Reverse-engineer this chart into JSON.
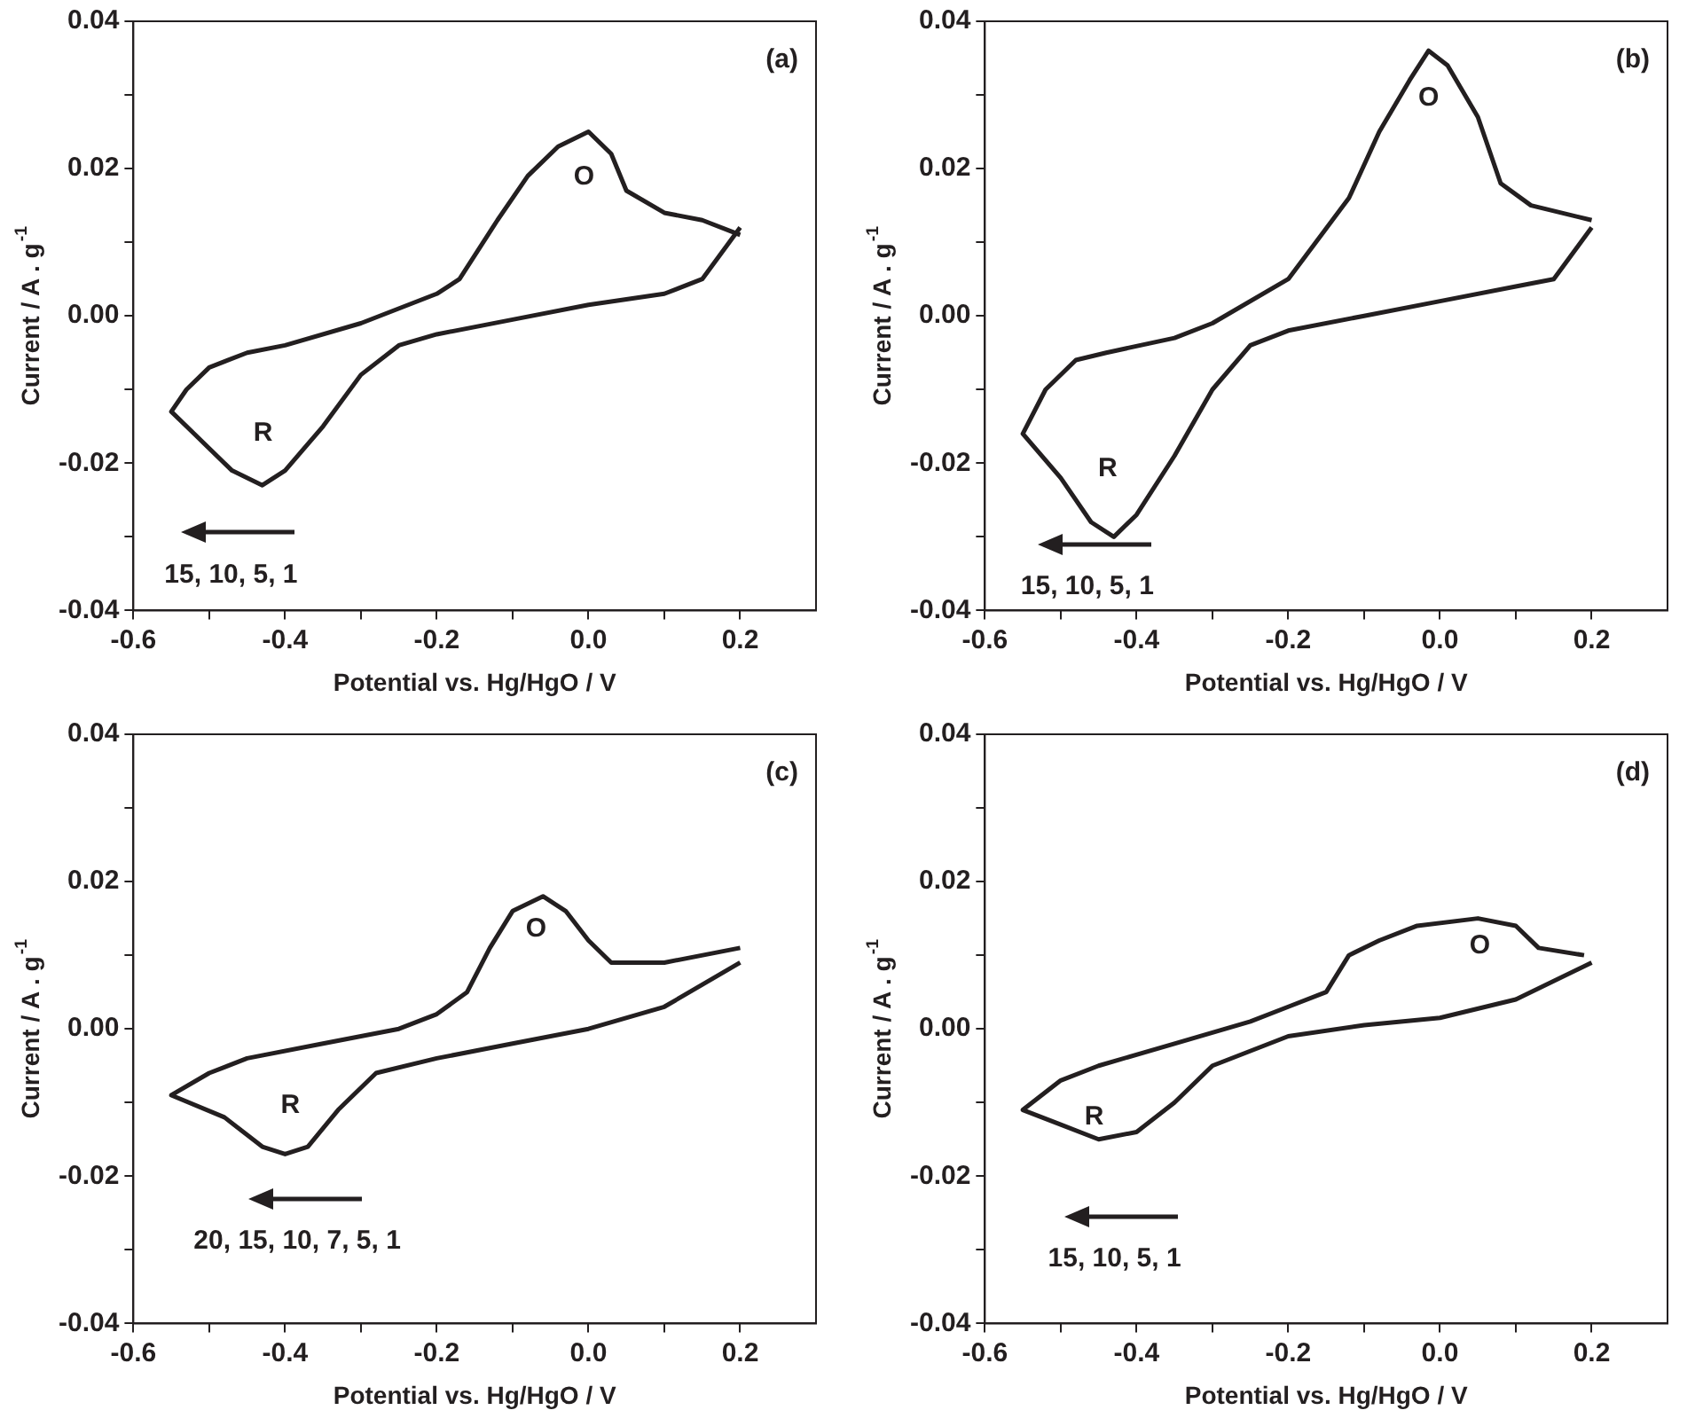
{
  "chart_data": [
    {
      "type": "line",
      "xlabel": "Potential vs. Hg/HgO / V",
      "ylabel": "Current / A . g$^{-1}$",
      "xlim": [
        -0.6,
        0.3
      ],
      "ylim": [
        -0.04,
        0.04
      ],
      "xticks": [
        -0.6,
        {
          "value": -0.5,
          "label": null
        },
        -0.4,
        {
          "value": -0.3,
          "label": null
        },
        -0.2,
        {
          "value": -0.1,
          "label": null
        },
        {
          "value": 0,
          "label": "0.0"
        },
        {
          "value": 0.1,
          "label": null
        },
        0.2
      ],
      "yticks": [
        -0.04,
        {
          "value": -0.03,
          "label": null
        },
        -0.02,
        {
          "value": -0.01,
          "label": null
        },
        {
          "value": 0,
          "label": "0.00"
        },
        {
          "value": 0.01,
          "label": null
        },
        0.02,
        {
          "value": 0.03,
          "label": null
        },
        0.04
      ],
      "marker": "none",
      "line_style": "solid",
      "grid": false,
      "legend": false,
      "series": [
        {
          "color": "#231f20",
          "x": [
            0.2,
            0.15,
            0.1,
            0.0,
            -0.1,
            -0.2,
            -0.25,
            -0.3,
            -0.35,
            -0.4,
            -0.43,
            -0.47,
            -0.52,
            -0.55,
            -0.53,
            -0.5,
            -0.45,
            -0.4,
            -0.3,
            -0.2,
            -0.17,
            -0.12,
            -0.08,
            -0.04,
            0.0,
            0.03,
            0.05,
            0.1,
            0.15,
            0.2
          ],
          "values": [
            0.012,
            0.005,
            0.003,
            0.0015,
            -0.0005,
            -0.0025,
            -0.004,
            -0.008,
            -0.015,
            -0.021,
            -0.023,
            -0.021,
            -0.016,
            -0.013,
            -0.01,
            -0.007,
            -0.005,
            -0.004,
            -0.001,
            0.003,
            0.005,
            0.013,
            0.019,
            0.023,
            0.025,
            0.022,
            0.017,
            0.014,
            0.013,
            0.011
          ]
        }
      ],
      "annotations": [
        "(a)",
        "O",
        "R",
        "15, 10, 5, 1"
      ]
    },
    {
      "type": "line",
      "xlabel": "Potential vs. Hg/HgO / V",
      "ylabel": "Current / A . g$^{-1}$",
      "xlim": [
        -0.6,
        0.3
      ],
      "ylim": [
        -0.04,
        0.04
      ],
      "xticks": [
        -0.6,
        {
          "value": -0.5,
          "label": null
        },
        -0.4,
        {
          "value": -0.3,
          "label": null
        },
        -0.2,
        {
          "value": -0.1,
          "label": null
        },
        {
          "value": 0,
          "label": "0.0"
        },
        {
          "value": 0.1,
          "label": null
        },
        0.2
      ],
      "yticks": [
        -0.04,
        {
          "value": -0.03,
          "label": null
        },
        -0.02,
        {
          "value": -0.01,
          "label": null
        },
        {
          "value": 0,
          "label": "0.00"
        },
        {
          "value": 0.01,
          "label": null
        },
        0.02,
        {
          "value": 0.03,
          "label": null
        },
        0.04
      ],
      "marker": "none",
      "line_style": "solid",
      "grid": false,
      "legend": false,
      "series": [
        {
          "color": "#231f20",
          "x": [
            0.2,
            0.15,
            0.1,
            0.0,
            -0.1,
            -0.2,
            -0.25,
            -0.3,
            -0.35,
            -0.4,
            -0.43,
            -0.46,
            -0.5,
            -0.55,
            -0.52,
            -0.48,
            -0.44,
            -0.35,
            -0.3,
            -0.2,
            -0.12,
            -0.08,
            -0.04,
            -0.015,
            0.01,
            0.05,
            0.08,
            0.12,
            0.2
          ],
          "values": [
            0.012,
            0.005,
            0.004,
            0.002,
            0.0,
            -0.002,
            -0.004,
            -0.01,
            -0.019,
            -0.027,
            -0.03,
            -0.028,
            -0.022,
            -0.016,
            -0.01,
            -0.006,
            -0.005,
            -0.003,
            -0.001,
            0.005,
            0.016,
            0.025,
            0.032,
            0.036,
            0.034,
            0.027,
            0.018,
            0.015,
            0.013
          ]
        }
      ],
      "annotations": [
        "(b)",
        "O",
        "R",
        "15, 10, 5, 1"
      ]
    },
    {
      "type": "line",
      "xlabel": "Potential vs. Hg/HgO / V",
      "ylabel": "Current / A . g$^{-1}$",
      "xlim": [
        -0.6,
        0.3
      ],
      "ylim": [
        -0.04,
        0.04
      ],
      "xticks": [
        -0.6,
        {
          "value": -0.5,
          "label": null
        },
        -0.4,
        {
          "value": -0.3,
          "label": null
        },
        -0.2,
        {
          "value": -0.1,
          "label": null
        },
        {
          "value": 0,
          "label": "0.0"
        },
        {
          "value": 0.1,
          "label": null
        },
        0.2
      ],
      "yticks": [
        -0.04,
        {
          "value": -0.03,
          "label": null
        },
        -0.02,
        {
          "value": -0.01,
          "label": null
        },
        {
          "value": 0,
          "label": "0.00"
        },
        {
          "value": 0.01,
          "label": null
        },
        0.02,
        {
          "value": 0.03,
          "label": null
        },
        0.04
      ],
      "marker": "none",
      "line_style": "solid",
      "grid": false,
      "legend": false,
      "series": [
        {
          "color": "#231f20",
          "x": [
            0.2,
            0.1,
            0.0,
            -0.1,
            -0.2,
            -0.28,
            -0.33,
            -0.37,
            -0.4,
            -0.43,
            -0.48,
            -0.55,
            -0.5,
            -0.45,
            -0.35,
            -0.25,
            -0.2,
            -0.16,
            -0.13,
            -0.1,
            -0.06,
            -0.03,
            0.0,
            0.03,
            0.1,
            0.2
          ],
          "values": [
            0.009,
            0.003,
            0.0,
            -0.002,
            -0.004,
            -0.006,
            -0.011,
            -0.016,
            -0.017,
            -0.016,
            -0.012,
            -0.009,
            -0.006,
            -0.004,
            -0.002,
            0.0,
            0.002,
            0.005,
            0.011,
            0.016,
            0.018,
            0.016,
            0.012,
            0.009,
            0.009,
            0.011
          ]
        }
      ],
      "annotations": [
        "(c)",
        "O",
        "R",
        "20, 15, 10, 7, 5, 1"
      ]
    },
    {
      "type": "line",
      "xlabel": "Potential vs. Hg/HgO / V",
      "ylabel": "Current / A . g$^{-1}$",
      "xlim": [
        -0.6,
        0.3
      ],
      "ylim": [
        -0.04,
        0.04
      ],
      "xticks": [
        -0.6,
        {
          "value": -0.5,
          "label": null
        },
        -0.4,
        {
          "value": -0.3,
          "label": null
        },
        -0.2,
        {
          "value": -0.1,
          "label": null
        },
        {
          "value": 0,
          "label": "0.0"
        },
        {
          "value": 0.1,
          "label": null
        },
        0.2
      ],
      "yticks": [
        -0.04,
        {
          "value": -0.03,
          "label": null
        },
        -0.02,
        {
          "value": -0.01,
          "label": null
        },
        {
          "value": 0,
          "label": "0.00"
        },
        {
          "value": 0.01,
          "label": null
        },
        0.02,
        {
          "value": 0.03,
          "label": null
        },
        0.04
      ],
      "marker": "none",
      "line_style": "solid",
      "grid": false,
      "legend": false,
      "series": [
        {
          "color": "#231f20",
          "x": [
            0.2,
            0.1,
            0.0,
            -0.1,
            -0.2,
            -0.3,
            -0.35,
            -0.4,
            -0.45,
            -0.5,
            -0.55,
            -0.5,
            -0.45,
            -0.35,
            -0.25,
            -0.2,
            -0.15,
            -0.12,
            -0.08,
            -0.03,
            0.05,
            0.1,
            0.13,
            0.19
          ],
          "values": [
            0.009,
            0.004,
            0.0015,
            0.0005,
            -0.001,
            -0.005,
            -0.01,
            -0.014,
            -0.015,
            -0.013,
            -0.011,
            -0.007,
            -0.005,
            -0.002,
            0.001,
            0.003,
            0.005,
            0.01,
            0.012,
            0.014,
            0.015,
            0.014,
            0.011,
            0.01
          ]
        }
      ],
      "annotations": [
        "(d)",
        "O",
        "R",
        "15, 10, 5, 1"
      ]
    }
  ]
}
